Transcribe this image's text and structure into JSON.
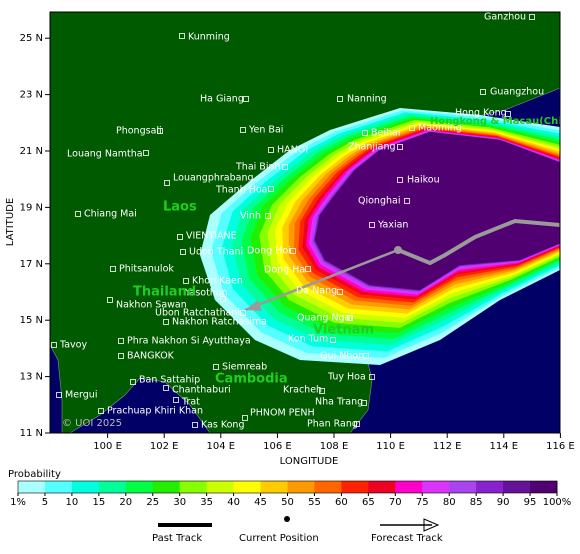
{
  "map": {
    "xaxis": {
      "label": "LONGITUDE",
      "ticks": [
        {
          "value": 100,
          "label": "100 E"
        },
        {
          "value": 102,
          "label": "102 E"
        },
        {
          "value": 104,
          "label": "104 E"
        },
        {
          "value": 106,
          "label": "106 E"
        },
        {
          "value": 108,
          "label": "108 E"
        },
        {
          "value": 110,
          "label": "110 E"
        },
        {
          "value": 112,
          "label": "112 E"
        },
        {
          "value": 114,
          "label": "114 E"
        },
        {
          "value": 116,
          "label": "116 E"
        }
      ]
    },
    "yaxis": {
      "label": "LATITUDE",
      "ticks": [
        {
          "value": 11,
          "label": "11 N"
        },
        {
          "value": 13,
          "label": "13 N"
        },
        {
          "value": 15,
          "label": "15 N"
        },
        {
          "value": 17,
          "label": "17 N"
        },
        {
          "value": 19,
          "label": "19 N"
        },
        {
          "value": 21,
          "label": "21 N"
        },
        {
          "value": 23,
          "label": "23 N"
        },
        {
          "value": 25,
          "label": "25 N"
        }
      ]
    },
    "places": [
      "Ganzhou",
      "Kunming",
      "Nanning",
      "Ha Giang",
      "Guangzhou",
      "Hong Kong",
      "Phongsali",
      "Yen Bai",
      "Beihai",
      "Maoming",
      "Louang Namtha",
      "HANOI",
      "Zhanjiang",
      "Thai Binh",
      "Haikou",
      "Louangphrabang",
      "Thanh Hoa",
      "Qionghai",
      "Chiang Mai",
      "Vinh",
      "Yaxian",
      "VIENTIANE",
      "Udon Thani",
      "Dong Hoi",
      "Phitsanulok",
      "Dong Ha",
      "Khon Kaen",
      "Yasothon",
      "Da Nang",
      "Nakhon Sawan",
      "Ubon Ratchathani",
      "Nakhon Ratchasima",
      "Quang Ngai",
      "Kon Tum",
      "Tavoy",
      "Phra Nakhon Si Ayutthaya",
      "BANGKOK",
      "Qui Nhon",
      "Siemreab",
      "Tuy Hoa",
      "Ban Sattahip",
      "Chanthaburi",
      "Kracheh",
      "Mergui",
      "Trat",
      "Nha Trang",
      "Prachuap Khiri Khan",
      "PHNOM PENH",
      "Kas Kong",
      "Phan Rang"
    ],
    "regions": [
      "Hongkong & Macau(China)",
      "Laos",
      "Thailand",
      "Vietnam",
      "Cambodia"
    ],
    "copyright": "© UOI 2025"
  },
  "colorbar": {
    "title": "Probability",
    "ticks": [
      {
        "value": 1,
        "label": "1%"
      },
      5,
      10,
      15,
      20,
      25,
      30,
      35,
      40,
      45,
      50,
      55,
      60,
      65,
      70,
      75,
      80,
      85,
      90,
      95,
      {
        "value": 100,
        "label": "100%"
      }
    ],
    "colors": [
      "#aaffff",
      "#55ffff",
      "#00ffdd",
      "#00ff99",
      "#00ff44",
      "#22ee00",
      "#88ff00",
      "#ccff00",
      "#ffff00",
      "#ffcc00",
      "#ff9900",
      "#ff6600",
      "#ff2200",
      "#ee0022",
      "#ff00cc",
      "#dd33ff",
      "#aa44ee",
      "#8822cc",
      "#661199",
      "#500070"
    ]
  },
  "legend": {
    "items": [
      "Past Track",
      "Current Position",
      "Forecast Track"
    ]
  }
}
